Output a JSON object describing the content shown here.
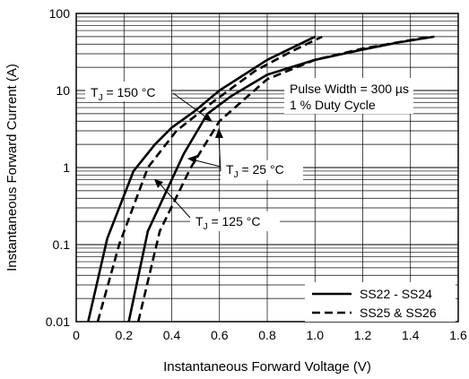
{
  "chart_data": {
    "type": "line",
    "xlabel": "Instantaneous Forward Voltage (V)",
    "ylabel": "Instantaneous Forward Current (A)",
    "xlim": [
      0,
      1.6
    ],
    "ylim": [
      0.01,
      100
    ],
    "y_scale": "log",
    "grid": true,
    "x_ticks": [
      "0",
      "0.2",
      "0.4",
      "0.6",
      "0.8",
      "1.0",
      "1.2",
      "1.4",
      "1.6"
    ],
    "y_ticks": [
      "0.01",
      "0.1",
      "1",
      "10",
      "100"
    ],
    "legend_position": "bottom-right",
    "legend": [
      {
        "label": "SS22 - SS24",
        "dash": "solid"
      },
      {
        "label": "SS25 & SS26",
        "dash": "dashed"
      }
    ],
    "series": [
      {
        "legend": "SS22 - SS24",
        "condition": "T_J = 150 °C",
        "dash": "solid",
        "points": [
          [
            0.05,
            0.01
          ],
          [
            0.13,
            0.12
          ],
          [
            0.24,
            0.9
          ],
          [
            0.33,
            2.0
          ],
          [
            0.4,
            3.3
          ],
          [
            0.5,
            5.5
          ],
          [
            0.6,
            10
          ],
          [
            0.8,
            25
          ],
          [
            1.0,
            50
          ]
        ]
      },
      {
        "legend": "SS22 - SS24",
        "condition": "T_J = 25 °C",
        "dash": "solid",
        "points": [
          [
            0.22,
            0.01
          ],
          [
            0.3,
            0.15
          ],
          [
            0.45,
            1.5
          ],
          [
            0.55,
            5.0
          ],
          [
            0.65,
            8.5
          ],
          [
            0.8,
            16
          ],
          [
            1.0,
            25
          ],
          [
            1.2,
            34
          ],
          [
            1.35,
            42
          ],
          [
            1.5,
            50
          ]
        ]
      },
      {
        "legend": "SS25 & SS26",
        "condition": "T_J = 150 °C",
        "dash": "dashed",
        "points": [
          [
            0.09,
            0.01
          ],
          [
            0.18,
            0.1
          ],
          [
            0.3,
            1.0
          ],
          [
            0.42,
            3.0
          ],
          [
            0.57,
            7.0
          ],
          [
            0.75,
            18
          ],
          [
            0.9,
            32
          ],
          [
            1.03,
            50
          ]
        ]
      },
      {
        "legend": "SS25 & SS26",
        "condition": "T_J = 25 °C",
        "dash": "dashed",
        "points": [
          [
            0.26,
            0.01
          ],
          [
            0.35,
            0.15
          ],
          [
            0.48,
            1.0
          ],
          [
            0.6,
            4.0
          ],
          [
            0.8,
            14
          ],
          [
            1.0,
            25
          ],
          [
            1.2,
            35
          ],
          [
            1.4,
            45
          ],
          [
            1.48,
            50
          ]
        ]
      }
    ],
    "annotations": {
      "tj150": "T",
      "tj150_sub": "J",
      "tj150_rest": " = 150 °C",
      "tj25": "T",
      "tj25_sub": "J",
      "tj25_rest": " = 25 °C",
      "tj125": "T",
      "tj125_sub": "J",
      "tj125_rest": " = 125 °C",
      "pulse_line1": "Pulse Width = 300 µs",
      "pulse_line2": "1 % Duty Cycle"
    }
  }
}
